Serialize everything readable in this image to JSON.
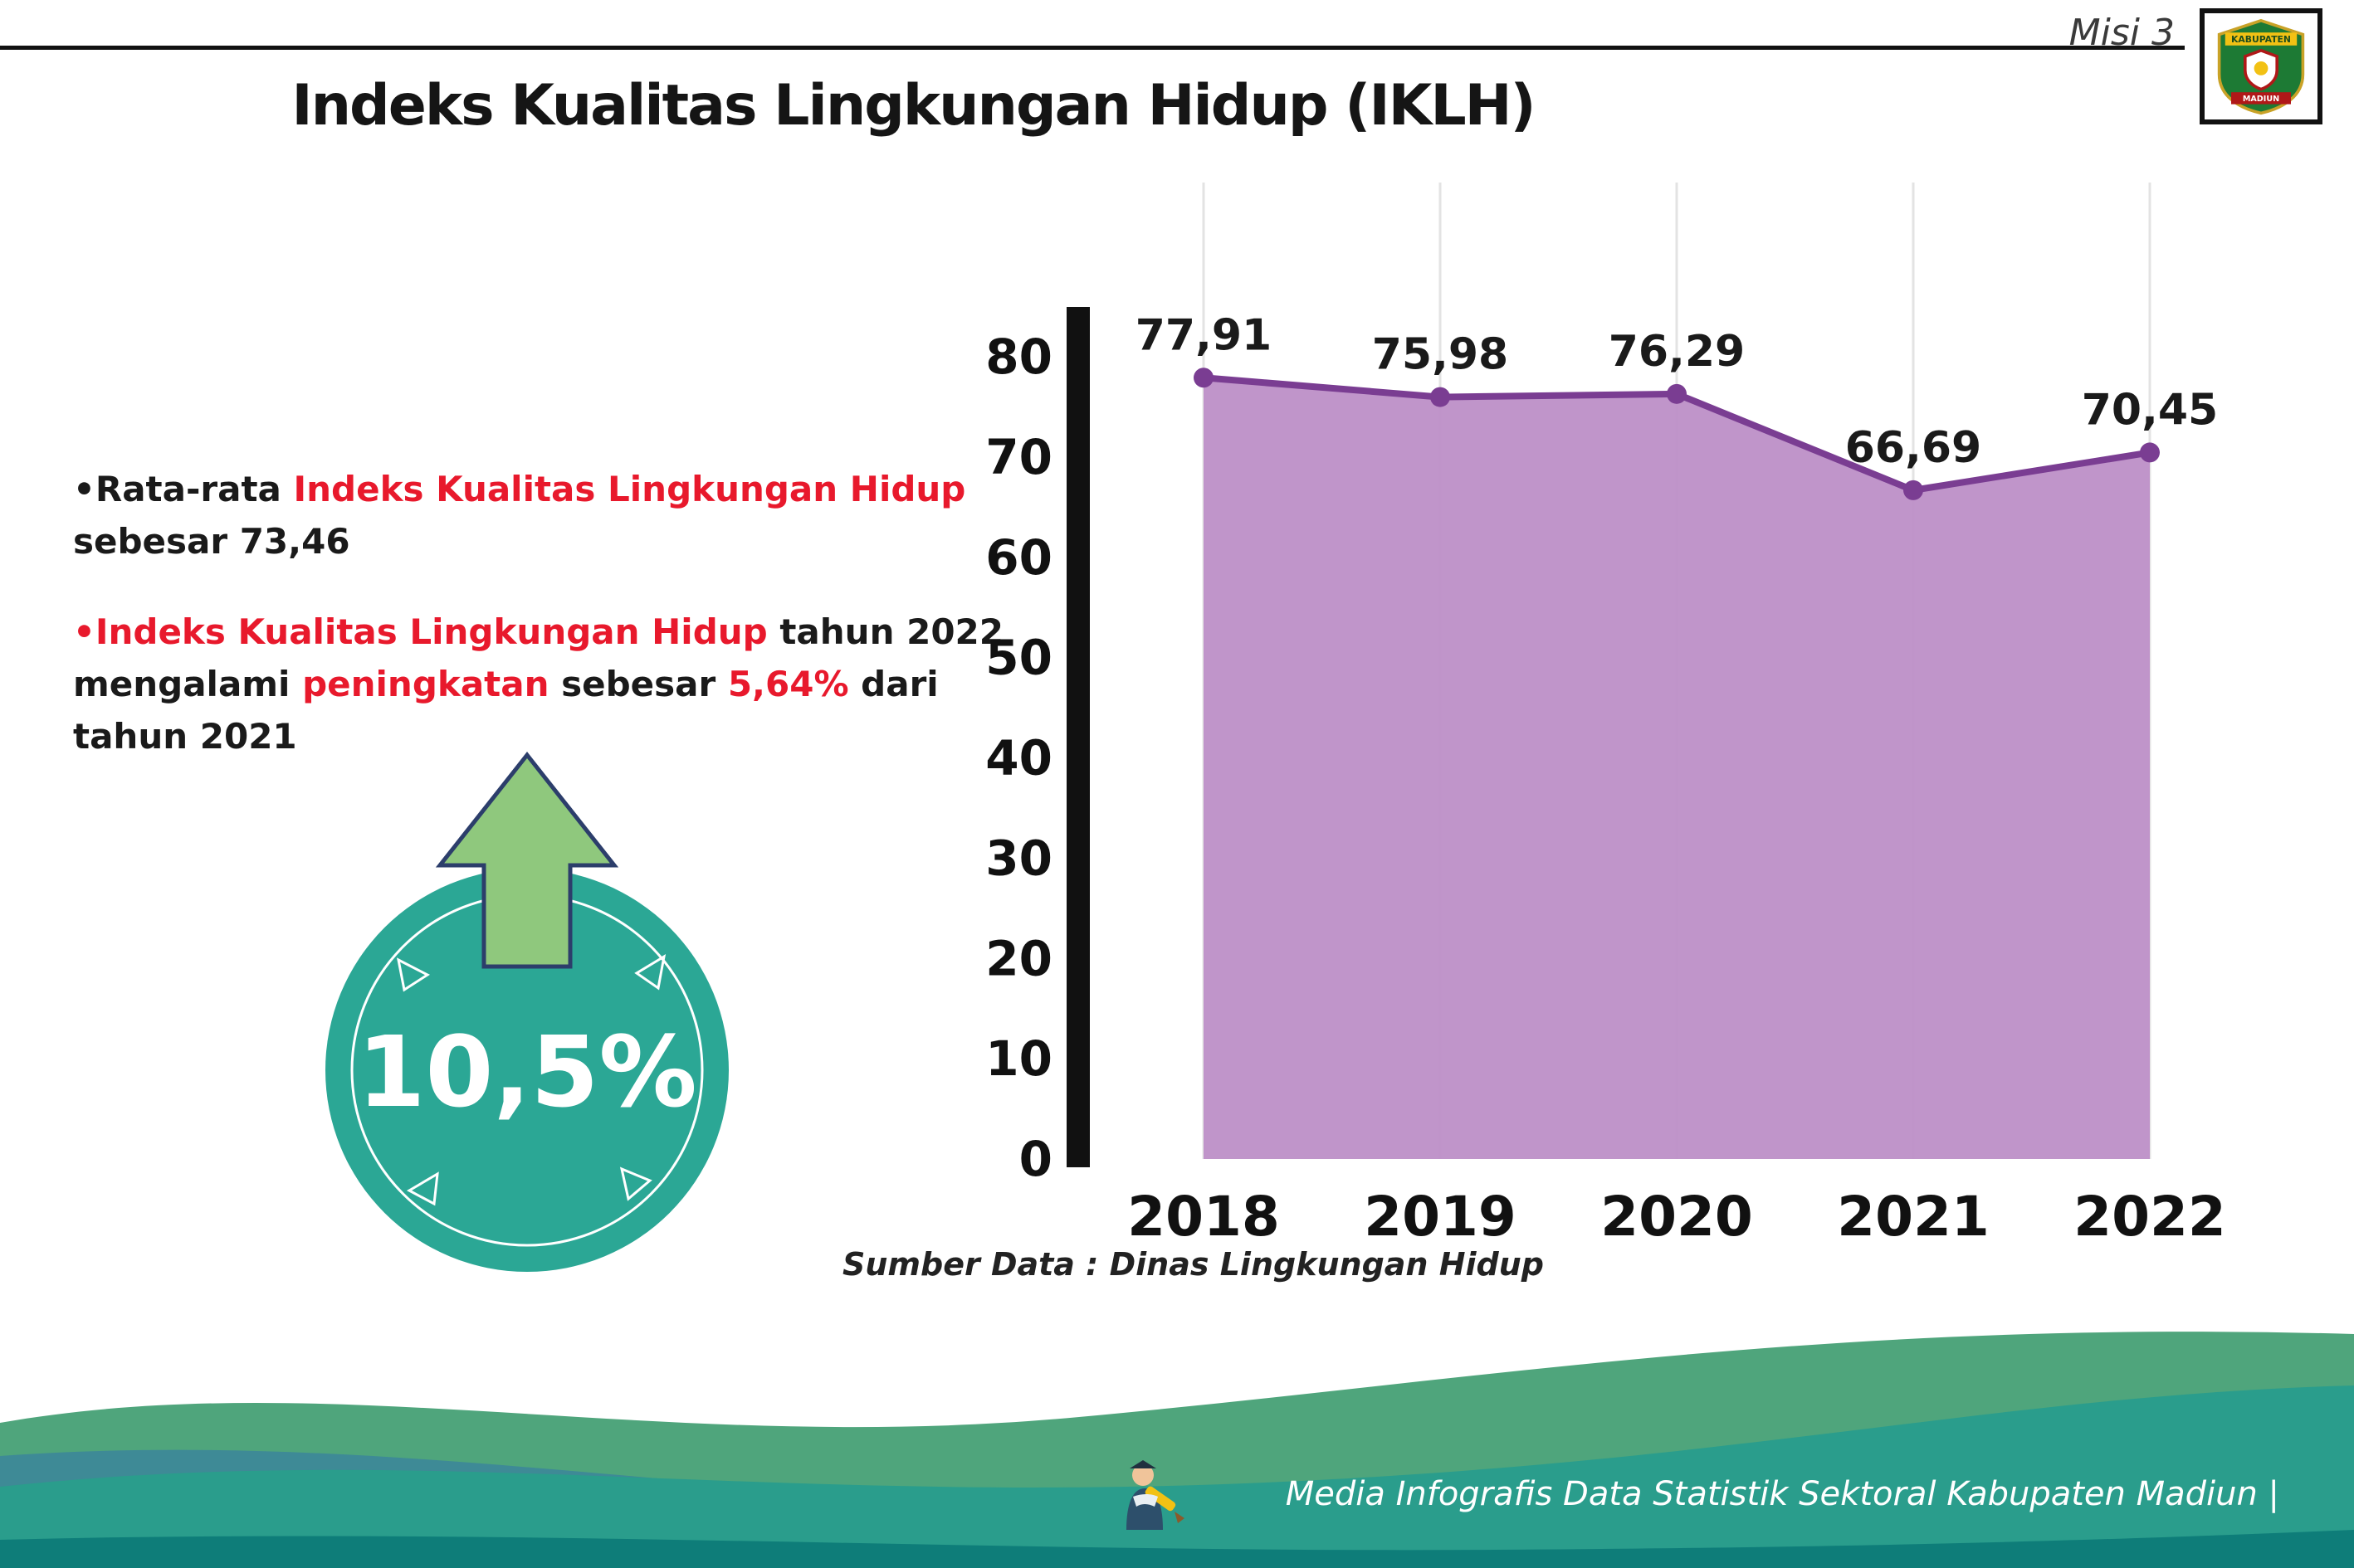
{
  "header": {
    "misi": "Misi 3",
    "title": "Indeks Kualitas Lingkungan Hidup (IKLH)"
  },
  "logo": {
    "top_text": "KABUPATEN",
    "bottom_text": "MADIUN"
  },
  "bullets": {
    "marker": "•",
    "item1": {
      "black1": "Rata-rata ",
      "red1": "Indeks Kualitas Lingkungan Hidup",
      "black2": " sebesar 73,46"
    },
    "item2": {
      "red1": "Indeks Kualitas Lingkungan Hidup",
      "black1": " tahun 2022 mengalami ",
      "red2": "peningkatan",
      "black2": " sebesar ",
      "red3": "5,64%",
      "black3": " dari tahun 2021"
    }
  },
  "highlight": {
    "value": "10,5%"
  },
  "chart_data": {
    "type": "area",
    "title": "Indeks Kualitas Lingkungan Hidup (IKLH)",
    "categories": [
      "2018",
      "2019",
      "2020",
      "2021",
      "2022"
    ],
    "values": [
      77.91,
      75.98,
      76.29,
      66.69,
      70.45
    ],
    "value_labels": [
      "77,91",
      "75,98",
      "76,29",
      "66,69",
      "70,45"
    ],
    "ylim": [
      0,
      80
    ],
    "yticks": [
      0,
      10,
      20,
      30,
      40,
      50,
      60,
      70,
      80
    ],
    "xlabel": "",
    "ylabel": "",
    "grid": "faint vertical per year",
    "legend": "none",
    "source": "Sumber Data : Dinas Lingkungan Hidup",
    "area_color": "#bd8fc7",
    "line_color": "#7a3d92"
  },
  "footer": {
    "credit": "Media Infografis Data Statistik Sektoral Kabupaten Madiun |"
  },
  "colors": {
    "accent_red": "#e8192c",
    "badge_teal": "#2ba795",
    "arrow_green": "#8fc87d",
    "arrow_outline": "#2c3e6b",
    "footer_green": "#4fa57c",
    "footer_teal": "#2a9d8c",
    "footer_dark": "#0e7d79",
    "axis_black": "#111111"
  }
}
